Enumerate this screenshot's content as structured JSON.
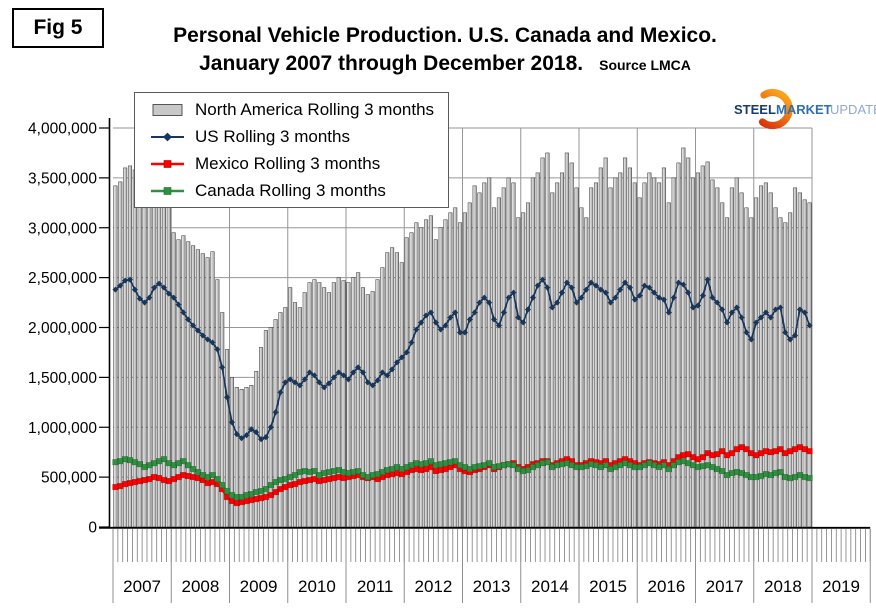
{
  "fig_label": "Fig 5",
  "title": {
    "line1": "Personal Vehicle Production. U.S. Canada and Mexico.",
    "line2": "January 2007 through December 2018.",
    "source": "Source LMCA"
  },
  "logo": {
    "steel": "STEEL",
    "market": "MARKET",
    "update": "UPDATE"
  },
  "colors": {
    "bar_fill": "#c8c8c8",
    "bar_border": "#3d3d3d",
    "us_line": "#17375E",
    "mexico_line": "#FE0000",
    "canada_line": "#2E9140",
    "gridline": "#969696",
    "axis": "#000000",
    "logo_orange": "#F07D12",
    "logo_navy": "#1D3A6D",
    "logo_blue": "#2F6FAE",
    "logo_lightblue": "#93A9CD"
  },
  "chart_data": {
    "type": "combo-bar-line",
    "title": "Personal Vehicle Production. U.S. Canada and Mexico. January 2007 through December 2018.",
    "source": "LMCA",
    "x_unit": "month",
    "x_start": "2007-01",
    "x_end": "2018-12",
    "x_year_labels": [
      "2007",
      "2008",
      "2009",
      "2010",
      "2011",
      "2012",
      "2013",
      "2014",
      "2015",
      "2016",
      "2017",
      "2018",
      "2019"
    ],
    "y_tick_labels": [
      "4,000,000",
      "3,500,000",
      "3,000,000",
      "2,500,000",
      "2,000,000",
      "1,500,000",
      "1,000,000",
      "500,000",
      "0"
    ],
    "ylim": [
      0,
      4000000
    ],
    "y_gridline_interval": 500000,
    "grid": true,
    "legend_position": "top-left-inside",
    "series": [
      {
        "name": "North America Rolling 3 months",
        "type": "bar",
        "color": "#c8c8c8",
        "values": [
          3420000,
          3460000,
          3600000,
          3620000,
          3580000,
          3230000,
          3200000,
          3220000,
          3300000,
          3420000,
          3450000,
          3350000,
          2950000,
          2880000,
          2920000,
          2860000,
          2820000,
          2780000,
          2740000,
          2700000,
          2760000,
          2480000,
          2150000,
          1780000,
          1500000,
          1400000,
          1380000,
          1400000,
          1420000,
          1560000,
          1800000,
          1970000,
          2000000,
          2080000,
          2150000,
          2200000,
          2400000,
          2250000,
          2200000,
          2350000,
          2450000,
          2480000,
          2450000,
          2400000,
          2350000,
          2450000,
          2500000,
          2470000,
          2450000,
          2500000,
          2550000,
          2400000,
          2330000,
          2360000,
          2480000,
          2600000,
          2750000,
          2800000,
          2750000,
          2650000,
          2900000,
          2950000,
          3050000,
          3000000,
          3080000,
          3120000,
          2880000,
          3000000,
          3080000,
          3150000,
          3200000,
          3050000,
          3150000,
          3250000,
          3420000,
          3350000,
          3450000,
          3500000,
          3200000,
          3300000,
          3400000,
          3500000,
          3450000,
          3100000,
          3150000,
          3250000,
          3500000,
          3550000,
          3700000,
          3750000,
          3350000,
          3450000,
          3550000,
          3750000,
          3650000,
          3400000,
          3200000,
          3100000,
          3400000,
          3450000,
          3600000,
          3700000,
          3400000,
          3500000,
          3550000,
          3700000,
          3600000,
          3450000,
          3300000,
          3450000,
          3550000,
          3500000,
          3450000,
          3600000,
          3250000,
          3500000,
          3650000,
          3800000,
          3700000,
          3500000,
          3550000,
          3620000,
          3660000,
          3480000,
          3400000,
          3250000,
          3100000,
          3400000,
          3500000,
          3350000,
          3200000,
          3100000,
          3300000,
          3420000,
          3450000,
          3350000,
          3200000,
          3100000,
          3050000,
          3150000,
          3400000,
          3350000,
          3280000,
          3250000
        ]
      },
      {
        "name": "US Rolling 3 months",
        "type": "line",
        "marker": "diamond",
        "color": "#17375E",
        "values": [
          2380000,
          2420000,
          2470000,
          2480000,
          2380000,
          2290000,
          2250000,
          2300000,
          2400000,
          2440000,
          2400000,
          2340000,
          2300000,
          2230000,
          2150000,
          2080000,
          2020000,
          1970000,
          1920000,
          1880000,
          1850000,
          1780000,
          1600000,
          1300000,
          1050000,
          930000,
          890000,
          920000,
          980000,
          950000,
          880000,
          900000,
          1000000,
          1150000,
          1350000,
          1450000,
          1480000,
          1450000,
          1420000,
          1480000,
          1550000,
          1520000,
          1450000,
          1400000,
          1440000,
          1500000,
          1550000,
          1520000,
          1480000,
          1550000,
          1600000,
          1550000,
          1450000,
          1420000,
          1470000,
          1550000,
          1520000,
          1580000,
          1650000,
          1700000,
          1750000,
          1850000,
          1980000,
          2050000,
          2120000,
          2150000,
          2050000,
          1980000,
          2020000,
          2100000,
          2150000,
          1950000,
          1950000,
          2080000,
          2150000,
          2250000,
          2300000,
          2250000,
          2080000,
          2020000,
          2150000,
          2300000,
          2350000,
          2100000,
          2050000,
          2180000,
          2300000,
          2420000,
          2480000,
          2400000,
          2200000,
          2250000,
          2350000,
          2450000,
          2400000,
          2250000,
          2300000,
          2380000,
          2450000,
          2420000,
          2380000,
          2350000,
          2250000,
          2300000,
          2380000,
          2450000,
          2400000,
          2280000,
          2320000,
          2420000,
          2400000,
          2350000,
          2300000,
          2280000,
          2150000,
          2300000,
          2450000,
          2430000,
          2350000,
          2200000,
          2220000,
          2320000,
          2480000,
          2300000,
          2250000,
          2180000,
          2050000,
          2150000,
          2200000,
          2100000,
          1950000,
          1880000,
          2050000,
          2100000,
          2150000,
          2100000,
          2180000,
          2200000,
          1950000,
          1880000,
          1920000,
          2180000,
          2150000,
          2020000
        ]
      },
      {
        "name": "Mexico Rolling 3 months",
        "type": "line",
        "marker": "square",
        "color": "#FE0000",
        "values": [
          400000,
          410000,
          430000,
          440000,
          450000,
          460000,
          470000,
          480000,
          500000,
          490000,
          470000,
          460000,
          480000,
          500000,
          520000,
          510000,
          500000,
          490000,
          470000,
          440000,
          450000,
          430000,
          380000,
          300000,
          260000,
          240000,
          250000,
          260000,
          270000,
          280000,
          290000,
          300000,
          320000,
          350000,
          380000,
          400000,
          420000,
          430000,
          450000,
          460000,
          470000,
          480000,
          460000,
          470000,
          480000,
          490000,
          500000,
          490000,
          500000,
          510000,
          520000,
          500000,
          490000,
          500000,
          480000,
          500000,
          520000,
          530000,
          540000,
          530000,
          550000,
          570000,
          580000,
          570000,
          580000,
          600000,
          560000,
          570000,
          580000,
          600000,
          620000,
          580000,
          560000,
          550000,
          570000,
          580000,
          600000,
          620000,
          580000,
          600000,
          620000,
          630000,
          640000,
          600000,
          580000,
          600000,
          630000,
          640000,
          660000,
          660000,
          620000,
          640000,
          660000,
          680000,
          660000,
          620000,
          620000,
          640000,
          660000,
          650000,
          640000,
          660000,
          620000,
          640000,
          660000,
          680000,
          660000,
          640000,
          620000,
          640000,
          650000,
          640000,
          630000,
          650000,
          620000,
          660000,
          700000,
          720000,
          730000,
          700000,
          680000,
          700000,
          740000,
          720000,
          730000,
          760000,
          720000,
          740000,
          780000,
          800000,
          780000,
          740000,
          720000,
          740000,
          760000,
          750000,
          760000,
          780000,
          740000,
          760000,
          780000,
          800000,
          780000,
          760000
        ]
      },
      {
        "name": "Canada Rolling 3 months",
        "type": "line",
        "marker": "square",
        "color": "#2E9140",
        "values": [
          650000,
          660000,
          680000,
          670000,
          650000,
          630000,
          600000,
          620000,
          640000,
          660000,
          680000,
          640000,
          620000,
          640000,
          660000,
          620000,
          580000,
          550000,
          520000,
          500000,
          520000,
          480000,
          420000,
          360000,
          320000,
          300000,
          300000,
          320000,
          330000,
          350000,
          360000,
          380000,
          420000,
          450000,
          470000,
          480000,
          500000,
          520000,
          550000,
          560000,
          550000,
          560000,
          520000,
          540000,
          550000,
          560000,
          570000,
          550000,
          540000,
          550000,
          560000,
          520000,
          500000,
          520000,
          530000,
          550000,
          570000,
          580000,
          600000,
          580000,
          600000,
          620000,
          640000,
          630000,
          640000,
          660000,
          620000,
          630000,
          640000,
          650000,
          660000,
          620000,
          600000,
          580000,
          600000,
          610000,
          620000,
          640000,
          600000,
          610000,
          620000,
          630000,
          620000,
          580000,
          560000,
          570000,
          600000,
          620000,
          640000,
          650000,
          600000,
          620000,
          630000,
          640000,
          620000,
          600000,
          600000,
          610000,
          630000,
          620000,
          600000,
          620000,
          580000,
          600000,
          620000,
          640000,
          620000,
          600000,
          600000,
          620000,
          640000,
          620000,
          600000,
          620000,
          580000,
          620000,
          650000,
          660000,
          640000,
          620000,
          600000,
          610000,
          620000,
          600000,
          580000,
          560000,
          520000,
          540000,
          550000,
          540000,
          520000,
          500000,
          500000,
          510000,
          530000,
          520000,
          540000,
          550000,
          500000,
          490000,
          500000,
          520000,
          500000,
          490000
        ]
      }
    ]
  }
}
